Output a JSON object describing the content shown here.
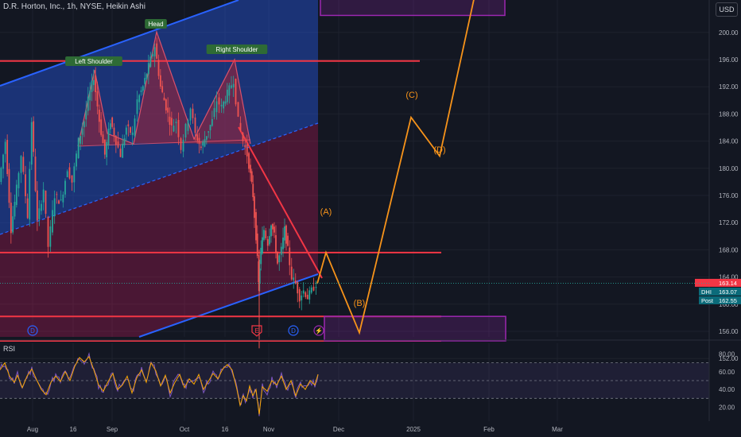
{
  "header": {
    "title": "D.R. Horton, Inc., 1h, NYSE, Heikin Ashi",
    "currency": "USD"
  },
  "colors": {
    "background": "#131722",
    "up_channel": "#2962ff",
    "down_channel": "#c2185b",
    "pattern_fill": "#a62032",
    "level_line": "#f23645",
    "wave_path": "#f7931a",
    "target_box": "#9c27b0",
    "rsi_line": "#7e57c2",
    "rsi_ma": "#f7a600",
    "candle_up": "#26a69a",
    "candle_down": "#ef5350"
  },
  "chart_data": [
    {
      "type": "line",
      "name": "price",
      "chart_style": "Heikin Ashi candles",
      "timeframe": "1h",
      "x_ticks": [
        "Aug",
        "16",
        "Sep",
        "Oct",
        "16",
        "Nov",
        "Dec",
        "2025",
        "Feb",
        "Mar"
      ],
      "y_ticks": [
        152,
        156,
        160,
        164,
        168,
        172,
        176,
        180,
        184,
        188,
        192,
        196,
        200
      ],
      "ylim": [
        148,
        204
      ],
      "price_path": [
        [
          0,
          178
        ],
        [
          8,
          184
        ],
        [
          15,
          171
        ],
        [
          22,
          177
        ],
        [
          28,
          182
        ],
        [
          36,
          173
        ],
        [
          41,
          187
        ],
        [
          48,
          172
        ],
        [
          56,
          177
        ],
        [
          62,
          168.5
        ],
        [
          70,
          176
        ],
        [
          78,
          175
        ],
        [
          86,
          180
        ],
        [
          92,
          178
        ],
        [
          100,
          184
        ],
        [
          107,
          187
        ],
        [
          112,
          190
        ],
        [
          119,
          193.5
        ],
        [
          126,
          187
        ],
        [
          133,
          182
        ],
        [
          140,
          187
        ],
        [
          147,
          184
        ],
        [
          153,
          182
        ],
        [
          160,
          186
        ],
        [
          168,
          185
        ],
        [
          174,
          190
        ],
        [
          181,
          192
        ],
        [
          188,
          195
        ],
        [
          196,
          198
        ],
        [
          203,
          192
        ],
        [
          210,
          189
        ],
        [
          217,
          186
        ],
        [
          223,
          187
        ],
        [
          229,
          183
        ],
        [
          235,
          186
        ],
        [
          241,
          189
        ],
        [
          247,
          185
        ],
        [
          254,
          183
        ],
        [
          261,
          185
        ],
        [
          268,
          187
        ],
        [
          274,
          190
        ],
        [
          280,
          189
        ],
        [
          287,
          191
        ],
        [
          295,
          193
        ],
        [
          301,
          187
        ],
        [
          307,
          184
        ],
        [
          312,
          182
        ],
        [
          316,
          179
        ],
        [
          319,
          176
        ],
        [
          323,
          170
        ],
        [
          326,
          163
        ],
        [
          329,
          168
        ],
        [
          333,
          171
        ],
        [
          338,
          169
        ],
        [
          342,
          172
        ],
        [
          346,
          170
        ],
        [
          350,
          166
        ],
        [
          355,
          168
        ],
        [
          359,
          171
        ],
        [
          363,
          168
        ],
        [
          368,
          164
        ],
        [
          373,
          163
        ],
        [
          378,
          161
        ],
        [
          383,
          162
        ],
        [
          388,
          161
        ],
        [
          393,
          162
        ],
        [
          399,
          163
        ]
      ],
      "wave_projection": [
        {
          "x": "late Nov",
          "y": 167.6,
          "label": "(A)"
        },
        {
          "x": "mid Dec",
          "y": 155.8,
          "label": "(B)"
        },
        {
          "x": "Jan",
          "y": 187.5,
          "label": "(C)"
        },
        {
          "x": "mid Jan",
          "y": 181.8,
          "label": "(D)"
        }
      ],
      "pattern_labels": [
        "Left Shoulder",
        "Head",
        "Right Shoulder"
      ],
      "pattern_points": {
        "left_shoulder": 193.5,
        "head": 199.8,
        "right_shoulder": 195.2,
        "neckline": [
          181.5,
          180.2,
          180.5
        ]
      },
      "horizontal_levels": [
        195.8,
        167.6,
        158.2,
        154.6
      ],
      "target_boxes": [
        {
          "low": 154.6,
          "high": 158.2
        },
        {
          "low": 202.5,
          "high": 206
        }
      ],
      "last_price": {
        "value": "163.14",
        "color": "#f23645"
      },
      "price_labels": [
        {
          "tag": "DHI",
          "value": "163.07"
        },
        {
          "tag": "Post",
          "value": "162.55"
        }
      ],
      "event_markers": [
        "D",
        "E",
        "D",
        "⚡"
      ]
    },
    {
      "type": "line",
      "name": "RSI",
      "panel_label": "RSI",
      "y_ticks": [
        20.0,
        40.0,
        60.0,
        80.0
      ],
      "ylim": [
        8,
        88
      ],
      "bands": {
        "upper": 70,
        "lower": 30
      },
      "rsi": [
        [
          0,
          62
        ],
        [
          6,
          70
        ],
        [
          12,
          55
        ],
        [
          18,
          48
        ],
        [
          22,
          56
        ],
        [
          28,
          42
        ],
        [
          34,
          55
        ],
        [
          40,
          63
        ],
        [
          46,
          51
        ],
        [
          52,
          40
        ],
        [
          58,
          34
        ],
        [
          64,
          48
        ],
        [
          70,
          55
        ],
        [
          76,
          49
        ],
        [
          82,
          60
        ],
        [
          88,
          50
        ],
        [
          94,
          66
        ],
        [
          100,
          76
        ],
        [
          106,
          71
        ],
        [
          112,
          77
        ],
        [
          118,
          62
        ],
        [
          124,
          45
        ],
        [
          130,
          38
        ],
        [
          136,
          49
        ],
        [
          142,
          58
        ],
        [
          148,
          40
        ],
        [
          154,
          45
        ],
        [
          160,
          55
        ],
        [
          166,
          36
        ],
        [
          172,
          53
        ],
        [
          178,
          62
        ],
        [
          184,
          48
        ],
        [
          190,
          70
        ],
        [
          196,
          61
        ],
        [
          202,
          44
        ],
        [
          208,
          56
        ],
        [
          214,
          36
        ],
        [
          220,
          48
        ],
        [
          226,
          57
        ],
        [
          232,
          42
        ],
        [
          238,
          52
        ],
        [
          244,
          46
        ],
        [
          250,
          57
        ],
        [
          256,
          40
        ],
        [
          262,
          49
        ],
        [
          268,
          58
        ],
        [
          274,
          52
        ],
        [
          280,
          63
        ],
        [
          286,
          68
        ],
        [
          292,
          62
        ],
        [
          298,
          40
        ],
        [
          302,
          22
        ],
        [
          306,
          33
        ],
        [
          310,
          27
        ],
        [
          314,
          44
        ],
        [
          318,
          33
        ],
        [
          322,
          40
        ],
        [
          326,
          12
        ],
        [
          330,
          43
        ],
        [
          336,
          38
        ],
        [
          342,
          50
        ],
        [
          348,
          45
        ],
        [
          354,
          55
        ],
        [
          360,
          40
        ],
        [
          366,
          50
        ],
        [
          372,
          33
        ],
        [
          378,
          46
        ],
        [
          384,
          40
        ],
        [
          390,
          50
        ],
        [
          396,
          45
        ],
        [
          400,
          57
        ]
      ]
    }
  ]
}
